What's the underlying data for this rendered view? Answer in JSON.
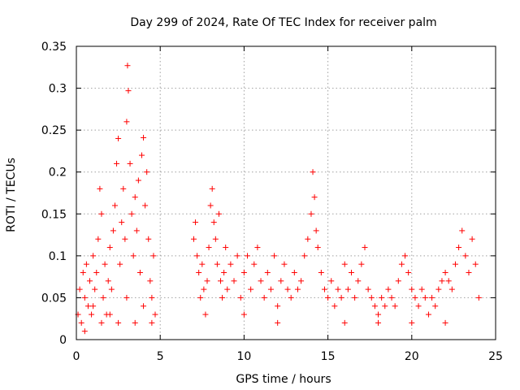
{
  "chart_data": {
    "type": "scatter",
    "title": "Day 299 of 2024, Rate Of TEC Index for receiver palm",
    "xlabel": "GPS time / hours",
    "ylabel": "ROTI / TECUs",
    "xlim": [
      0,
      25
    ],
    "ylim": [
      0,
      0.35
    ],
    "xticks": [
      0,
      5,
      10,
      15,
      20,
      25
    ],
    "xtick_labels": [
      "0",
      "5",
      "10",
      "15",
      "20",
      "25"
    ],
    "yticks": [
      0,
      0.05,
      0.1,
      0.15,
      0.2,
      0.25,
      0.3,
      0.35
    ],
    "ytick_labels": [
      "0",
      "0.05",
      "0.1",
      "0.15",
      "0.2",
      "0.25",
      "0.3",
      "0.35"
    ],
    "grid": true,
    "marker": "+",
    "color": "#ff0000",
    "series": [
      {
        "name": "ROTI",
        "points": [
          [
            0.1,
            0.03
          ],
          [
            0.2,
            0.06
          ],
          [
            0.3,
            0.02
          ],
          [
            0.4,
            0.08
          ],
          [
            0.5,
            0.05
          ],
          [
            0.6,
            0.09
          ],
          [
            0.7,
            0.04
          ],
          [
            0.8,
            0.07
          ],
          [
            0.9,
            0.03
          ],
          [
            1.0,
            0.1
          ],
          [
            1.1,
            0.06
          ],
          [
            1.2,
            0.08
          ],
          [
            1.3,
            0.12
          ],
          [
            1.4,
            0.18
          ],
          [
            1.5,
            0.15
          ],
          [
            1.6,
            0.05
          ],
          [
            1.7,
            0.09
          ],
          [
            1.8,
            0.03
          ],
          [
            1.9,
            0.07
          ],
          [
            2.0,
            0.11
          ],
          [
            2.1,
            0.06
          ],
          [
            2.2,
            0.13
          ],
          [
            2.3,
            0.16
          ],
          [
            2.4,
            0.21
          ],
          [
            2.5,
            0.24
          ],
          [
            2.6,
            0.09
          ],
          [
            2.7,
            0.14
          ],
          [
            2.8,
            0.18
          ],
          [
            2.9,
            0.12
          ],
          [
            3.0,
            0.26
          ],
          [
            3.05,
            0.327
          ],
          [
            3.1,
            0.297
          ],
          [
            3.2,
            0.21
          ],
          [
            3.3,
            0.15
          ],
          [
            3.4,
            0.1
          ],
          [
            3.5,
            0.17
          ],
          [
            3.6,
            0.13
          ],
          [
            3.7,
            0.19
          ],
          [
            3.8,
            0.08
          ],
          [
            3.9,
            0.22
          ],
          [
            4.0,
            0.241
          ],
          [
            4.1,
            0.16
          ],
          [
            4.2,
            0.2
          ],
          [
            4.3,
            0.12
          ],
          [
            4.4,
            0.07
          ],
          [
            4.5,
            0.05
          ],
          [
            4.6,
            0.1
          ],
          [
            4.7,
            0.03
          ],
          [
            0.5,
            0.01
          ],
          [
            1.5,
            0.02
          ],
          [
            2.5,
            0.02
          ],
          [
            3.5,
            0.02
          ],
          [
            4.5,
            0.02
          ],
          [
            1.0,
            0.04
          ],
          [
            2.0,
            0.03
          ],
          [
            3.0,
            0.05
          ],
          [
            4.0,
            0.04
          ],
          [
            7.0,
            0.12
          ],
          [
            7.1,
            0.14
          ],
          [
            7.2,
            0.1
          ],
          [
            7.3,
            0.08
          ],
          [
            7.4,
            0.05
          ],
          [
            7.5,
            0.09
          ],
          [
            7.6,
            0.06
          ],
          [
            7.7,
            0.03
          ],
          [
            7.8,
            0.07
          ],
          [
            7.9,
            0.11
          ],
          [
            8.0,
            0.16
          ],
          [
            8.1,
            0.18
          ],
          [
            8.2,
            0.14
          ],
          [
            8.3,
            0.12
          ],
          [
            8.4,
            0.09
          ],
          [
            8.5,
            0.15
          ],
          [
            8.6,
            0.07
          ],
          [
            8.7,
            0.05
          ],
          [
            8.8,
            0.08
          ],
          [
            8.9,
            0.11
          ],
          [
            9.0,
            0.06
          ],
          [
            9.2,
            0.09
          ],
          [
            9.4,
            0.07
          ],
          [
            9.6,
            0.1
          ],
          [
            9.8,
            0.05
          ],
          [
            10.0,
            0.08
          ],
          [
            10.2,
            0.1
          ],
          [
            10.4,
            0.06
          ],
          [
            10.6,
            0.09
          ],
          [
            10.8,
            0.11
          ],
          [
            11.0,
            0.07
          ],
          [
            11.2,
            0.05
          ],
          [
            11.4,
            0.08
          ],
          [
            11.6,
            0.06
          ],
          [
            11.8,
            0.1
          ],
          [
            12.0,
            0.04
          ],
          [
            12.2,
            0.07
          ],
          [
            12.4,
            0.09
          ],
          [
            12.6,
            0.06
          ],
          [
            12.8,
            0.05
          ],
          [
            13.0,
            0.08
          ],
          [
            13.2,
            0.06
          ],
          [
            13.4,
            0.07
          ],
          [
            13.6,
            0.1
          ],
          [
            13.8,
            0.12
          ],
          [
            14.0,
            0.15
          ],
          [
            14.1,
            0.2
          ],
          [
            14.2,
            0.17
          ],
          [
            14.3,
            0.13
          ],
          [
            14.4,
            0.11
          ],
          [
            14.6,
            0.08
          ],
          [
            14.8,
            0.06
          ],
          [
            15.0,
            0.05
          ],
          [
            15.2,
            0.07
          ],
          [
            15.4,
            0.04
          ],
          [
            15.6,
            0.06
          ],
          [
            15.8,
            0.05
          ],
          [
            16.0,
            0.09
          ],
          [
            16.2,
            0.06
          ],
          [
            16.4,
            0.08
          ],
          [
            16.6,
            0.05
          ],
          [
            16.8,
            0.07
          ],
          [
            17.0,
            0.09
          ],
          [
            17.2,
            0.11
          ],
          [
            17.4,
            0.06
          ],
          [
            17.6,
            0.05
          ],
          [
            17.8,
            0.04
          ],
          [
            18.0,
            0.03
          ],
          [
            18.2,
            0.05
          ],
          [
            18.4,
            0.04
          ],
          [
            18.6,
            0.06
          ],
          [
            18.8,
            0.05
          ],
          [
            19.0,
            0.04
          ],
          [
            19.2,
            0.07
          ],
          [
            19.4,
            0.09
          ],
          [
            19.6,
            0.1
          ],
          [
            19.8,
            0.08
          ],
          [
            20.0,
            0.06
          ],
          [
            20.2,
            0.05
          ],
          [
            20.4,
            0.04
          ],
          [
            20.6,
            0.06
          ],
          [
            20.8,
            0.05
          ],
          [
            21.0,
            0.03
          ],
          [
            21.2,
            0.05
          ],
          [
            21.4,
            0.04
          ],
          [
            21.6,
            0.06
          ],
          [
            21.8,
            0.07
          ],
          [
            22.0,
            0.08
          ],
          [
            22.2,
            0.07
          ],
          [
            22.4,
            0.06
          ],
          [
            22.6,
            0.09
          ],
          [
            22.8,
            0.11
          ],
          [
            23.0,
            0.13
          ],
          [
            23.2,
            0.1
          ],
          [
            23.4,
            0.08
          ],
          [
            23.6,
            0.12
          ],
          [
            23.8,
            0.09
          ],
          [
            24.0,
            0.05
          ],
          [
            12.0,
            0.02
          ],
          [
            16.0,
            0.02
          ],
          [
            20.0,
            0.02
          ],
          [
            10.0,
            0.03
          ],
          [
            18.0,
            0.02
          ],
          [
            22.0,
            0.02
          ]
        ]
      }
    ]
  }
}
